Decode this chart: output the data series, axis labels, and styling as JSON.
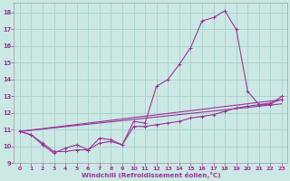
{
  "xlabel": "Windchill (Refroidissement éolien,°C)",
  "bg_color": "#cce8e4",
  "grid_color": "#aad4d0",
  "line_color": "#993399",
  "xlim": [
    -0.5,
    23.5
  ],
  "ylim": [
    9,
    18.6
  ],
  "yticks": [
    9,
    10,
    11,
    12,
    13,
    14,
    15,
    16,
    17,
    18
  ],
  "xticks": [
    0,
    1,
    2,
    3,
    4,
    5,
    6,
    7,
    8,
    9,
    10,
    11,
    12,
    13,
    14,
    15,
    16,
    17,
    18,
    19,
    20,
    21,
    22,
    23
  ],
  "series_main": {
    "x": [
      0,
      1,
      2,
      3,
      4,
      5,
      6,
      7,
      8,
      9,
      10,
      11,
      12,
      13,
      14,
      15,
      16,
      17,
      18,
      19,
      20,
      21,
      22,
      23
    ],
    "y": [
      10.9,
      10.7,
      10.2,
      9.7,
      9.7,
      9.8,
      9.8,
      10.5,
      10.4,
      10.1,
      11.5,
      11.4,
      13.6,
      14.0,
      14.9,
      15.9,
      17.5,
      17.7,
      18.1,
      17.0,
      13.3,
      12.5,
      12.5,
      13.0
    ]
  },
  "series_secondary": {
    "x": [
      0,
      1,
      2,
      3,
      4,
      5,
      6,
      7,
      8,
      9,
      10,
      11,
      12,
      13,
      14,
      15,
      16,
      17,
      18,
      19,
      20,
      21,
      22,
      23
    ],
    "y": [
      10.9,
      10.7,
      10.1,
      9.6,
      9.9,
      10.1,
      9.8,
      10.2,
      10.3,
      10.1,
      11.2,
      11.2,
      11.3,
      11.4,
      11.5,
      11.7,
      11.8,
      11.9,
      12.1,
      12.3,
      12.4,
      12.5,
      12.6,
      12.8
    ]
  },
  "line1": {
    "x": [
      0,
      23
    ],
    "y": [
      10.9,
      12.8
    ]
  },
  "line2": {
    "x": [
      0,
      23
    ],
    "y": [
      10.9,
      12.55
    ]
  }
}
